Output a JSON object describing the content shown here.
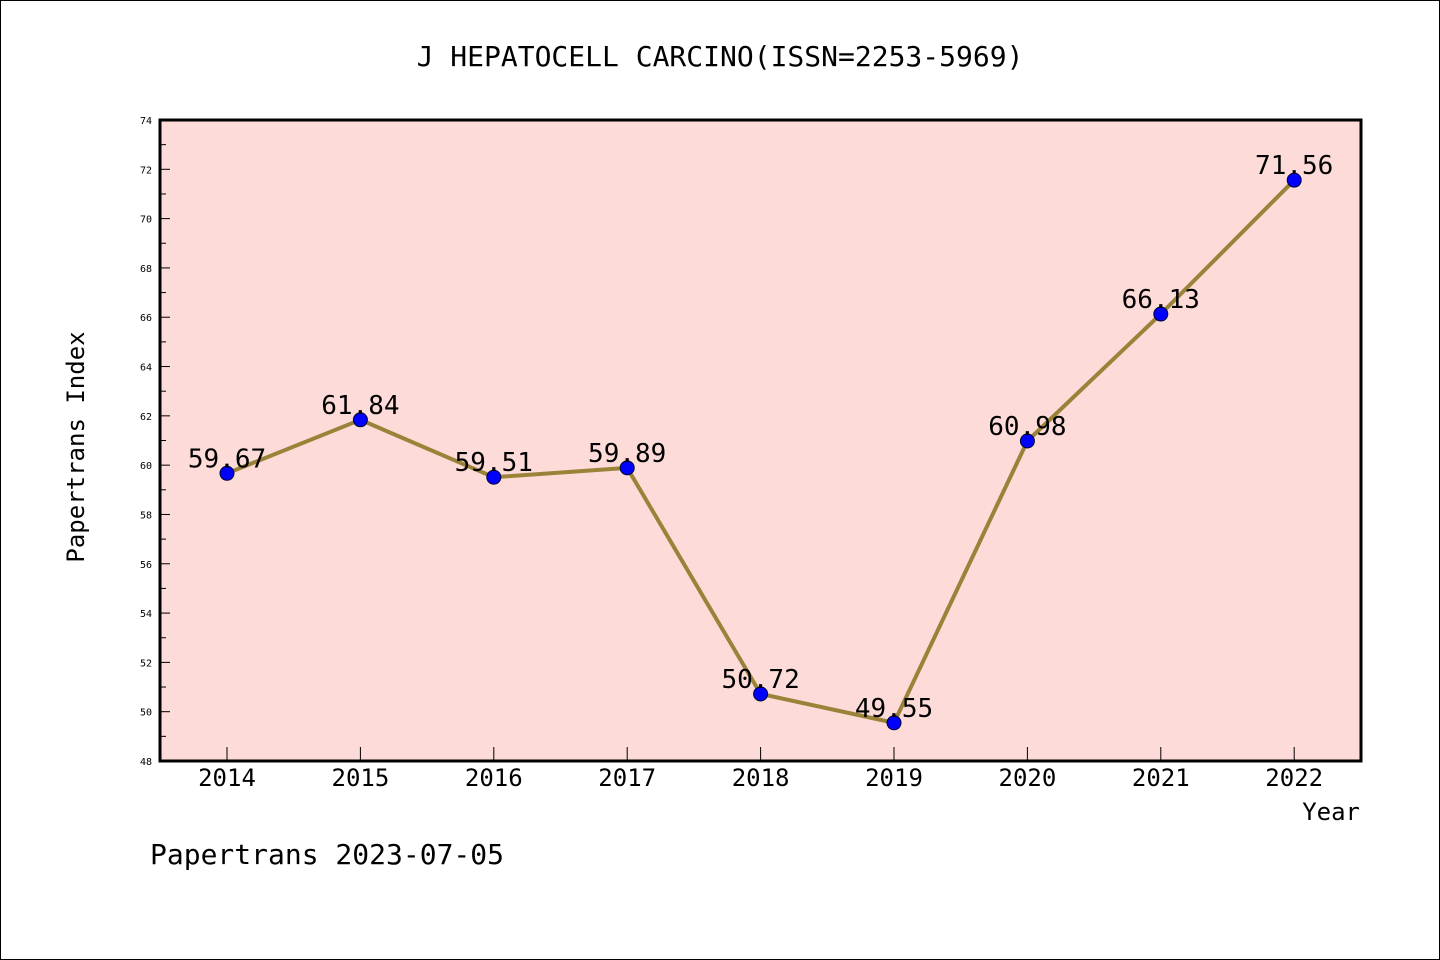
{
  "chart_data": {
    "type": "line",
    "title": "J HEPATOCELL CARCINO(ISSN=2253-5969)",
    "xlabel": "Year",
    "ylabel": "Papertrans Index",
    "x": [
      "2014",
      "2015",
      "2016",
      "2017",
      "2018",
      "2019",
      "2020",
      "2021",
      "2022"
    ],
    "series": [
      {
        "values": [
          59.67,
          61.84,
          59.51,
          59.89,
          50.72,
          49.55,
          60.98,
          66.13,
          71.56
        ]
      }
    ],
    "data_labels": [
      "59.67",
      "61.84",
      "59.51",
      "59.89",
      "50.72",
      "49.55",
      "60.98",
      "66.13",
      "71.56"
    ],
    "y_ticks": [
      "48",
      "50",
      "52",
      "54",
      "56",
      "58",
      "60",
      "62",
      "64",
      "66",
      "68",
      "70",
      "72",
      "74"
    ],
    "ylim": [
      48,
      74
    ],
    "grid": false,
    "colors": {
      "plot_background": "#fddbd8",
      "line": "#9a8238",
      "marker": "#0000ff"
    }
  },
  "footer": "Papertrans 2023-07-05"
}
